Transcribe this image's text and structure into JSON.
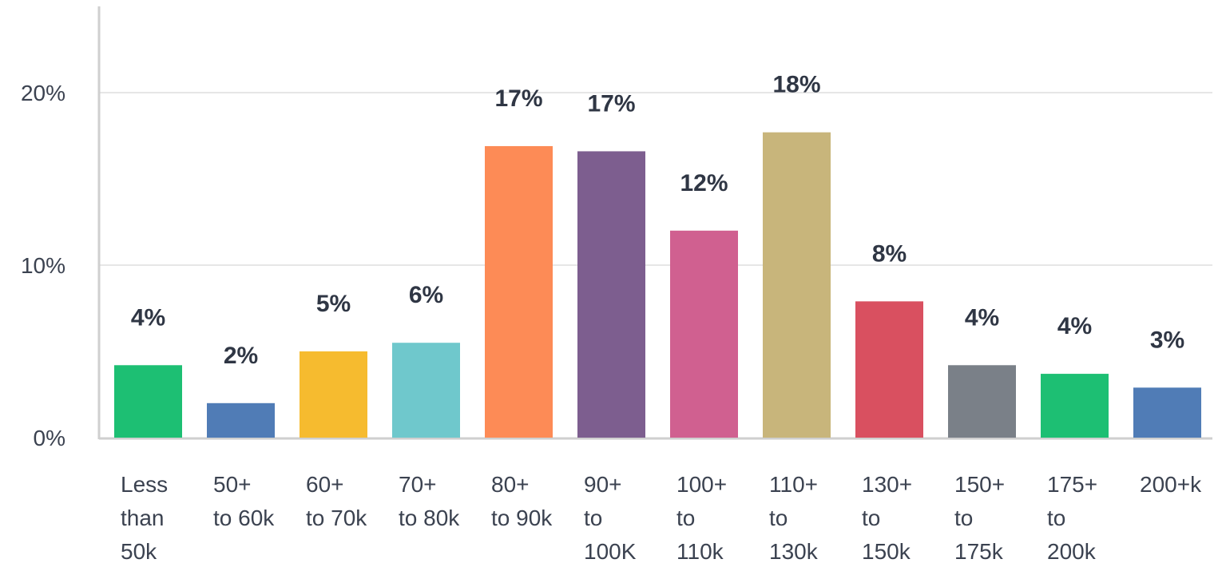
{
  "chart_data": {
    "type": "bar",
    "title": "",
    "xlabel": "",
    "ylabel": "",
    "ylim": [
      0,
      25
    ],
    "yticks": [
      0,
      10,
      20
    ],
    "ytick_labels": [
      "0%",
      "10%",
      "20%"
    ],
    "grid": true,
    "legend": "none",
    "categories": [
      [
        "Less",
        "than",
        "50k"
      ],
      [
        "50+",
        "to 60k"
      ],
      [
        "60+",
        "to 70k"
      ],
      [
        "70+",
        "to 80k"
      ],
      [
        "80+",
        "to 90k"
      ],
      [
        "90+",
        "to",
        "100K"
      ],
      [
        "100+",
        "to",
        "110k"
      ],
      [
        "110+",
        "to",
        "130k"
      ],
      [
        "130+",
        "to",
        "150k"
      ],
      [
        "150+",
        "to",
        "175k"
      ],
      [
        "175+",
        "to",
        "200k"
      ],
      [
        "200+k"
      ]
    ],
    "values": [
      4.2,
      2.0,
      5.0,
      5.5,
      16.9,
      16.6,
      12.0,
      17.7,
      7.9,
      4.2,
      3.7,
      2.9
    ],
    "data_labels": [
      "4%",
      "2%",
      "5%",
      "6%",
      "17%",
      "17%",
      "12%",
      "18%",
      "8%",
      "4%",
      "4%",
      "3%"
    ],
    "colors": [
      "#1dbf73",
      "#507cb6",
      "#f6bb2f",
      "#6fc8cc",
      "#fd8b56",
      "#7d5e8f",
      "#d06090",
      "#c8b57b",
      "#d95060",
      "#7a8088",
      "#1dbf73",
      "#507cb6"
    ]
  }
}
